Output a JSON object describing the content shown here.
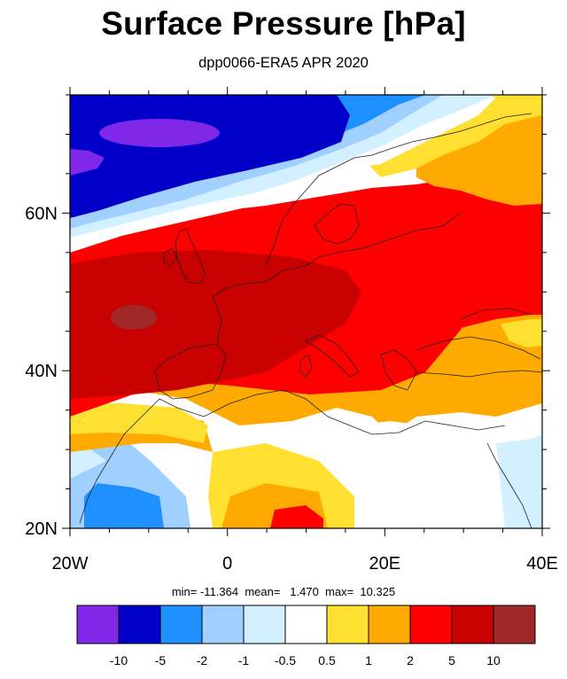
{
  "title": "Surface Pressure [hPa]",
  "subtitle": "dpp0066-ERA5 APR 2020",
  "stats": {
    "text": "min= -11.364  mean=   1.470  max=  10.325",
    "min": -11.364,
    "mean": 1.47,
    "max": 10.325
  },
  "map": {
    "lon_range": [
      -20,
      40
    ],
    "lat_range": [
      20,
      75
    ],
    "lon_ticks": [
      {
        "value": -20,
        "label": "20W"
      },
      {
        "value": 0,
        "label": "0"
      },
      {
        "value": 20,
        "label": "20E"
      },
      {
        "value": 40,
        "label": "40E"
      }
    ],
    "lat_ticks": [
      {
        "value": 20,
        "label": "20N"
      },
      {
        "value": 40,
        "label": "40N"
      },
      {
        "value": 60,
        "label": "60N"
      }
    ]
  },
  "colorbar": {
    "colors": [
      "#7f28e8",
      "#0000c8",
      "#1e90ff",
      "#a0d0ff",
      "#d2f0ff",
      "#ffffff",
      "#ffe030",
      "#ffaa00",
      "#ff0000",
      "#c80000",
      "#a02828"
    ],
    "labels": [
      "-10",
      "-5",
      "-2",
      "-1",
      "-0.5",
      "0.5",
      "1",
      "2",
      "5",
      "10"
    ]
  }
}
